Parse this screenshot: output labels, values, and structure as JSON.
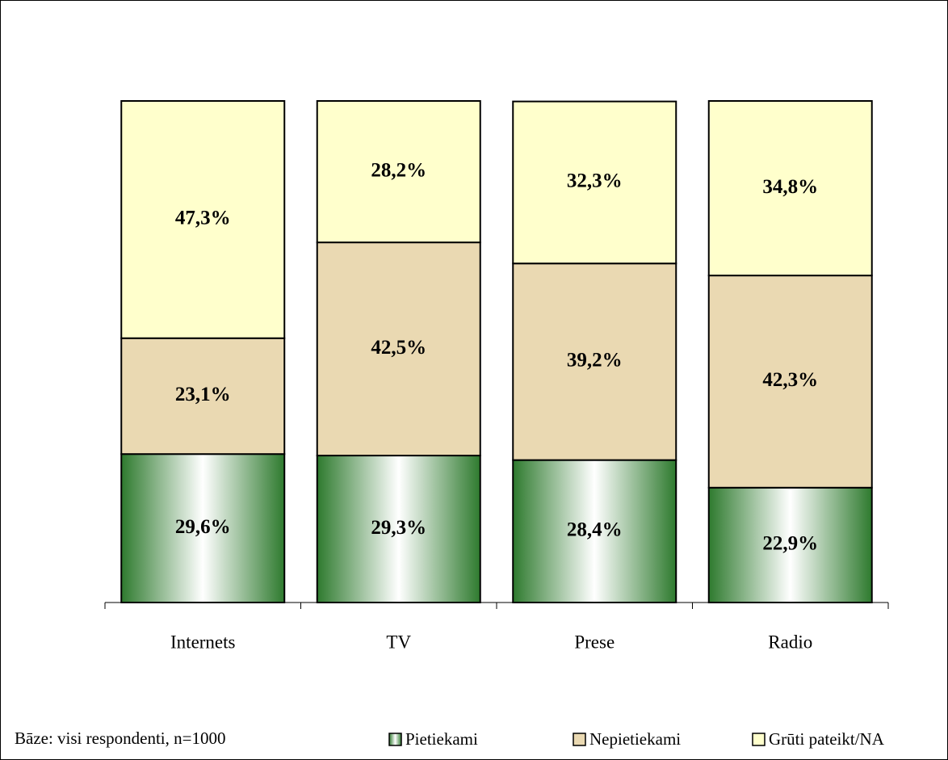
{
  "chart_data": {
    "type": "stacked_bar",
    "categories": [
      "Internets",
      "TV",
      "Prese",
      "Radio"
    ],
    "series": [
      {
        "name": "Pietiekami",
        "color": "#2e7a2e",
        "values": [
          29.6,
          29.3,
          28.4,
          22.9
        ],
        "value_labels": [
          "29,6%",
          "29,3%",
          "28,4%",
          "22,9%"
        ]
      },
      {
        "name": "Nepietiekami",
        "color": "#ead9b2",
        "values": [
          23.1,
          42.5,
          39.2,
          42.3
        ],
        "value_labels": [
          "23,1%",
          "42,5%",
          "39,2%",
          "42,3%"
        ]
      },
      {
        "name": "Grūti pateikt/NA",
        "color": "#ffffcc",
        "values": [
          47.3,
          28.2,
          32.3,
          34.8
        ],
        "value_labels": [
          "47,3%",
          "28,2%",
          "32,3%",
          "34,8%"
        ]
      }
    ],
    "ylim": [
      0,
      100
    ],
    "note": "Bāze: visi respondenti, n=1000"
  }
}
